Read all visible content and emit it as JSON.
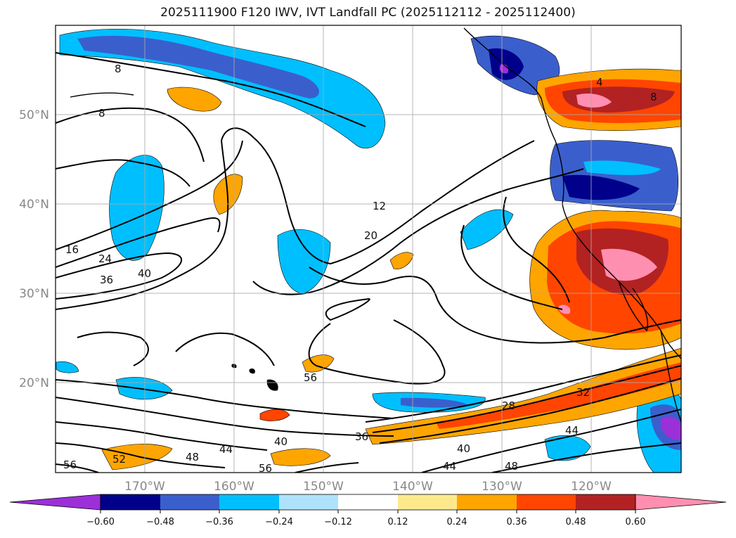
{
  "title": "2025111900 F120 IWV, IVT Landfall PC (2025112112 - 2025112400)",
  "axes": {
    "lat_labels": [
      "50°N",
      "40°N",
      "30°N",
      "20°N"
    ],
    "lon_labels": [
      "170°W",
      "160°W",
      "150°W",
      "140°W",
      "130°W",
      "120°W"
    ]
  },
  "colorbar": {
    "tick_labels": [
      "−0.60",
      "−0.48",
      "−0.36",
      "−0.24",
      "−0.12",
      "0.12",
      "0.24",
      "0.36",
      "0.48",
      "0.60"
    ],
    "colors": [
      "#9b30d8",
      "#00008b",
      "#3a5fcd",
      "#00bfff",
      "#aee2fb",
      "#ffffff",
      "#fde98c",
      "#ffa500",
      "#ff4500",
      "#b22222",
      "#ff8fb1"
    ]
  },
  "contour_labels": [
    "8",
    "8",
    "16",
    "24",
    "36",
    "40",
    "12",
    "20",
    "56",
    "52",
    "48",
    "44",
    "40",
    "56",
    "36",
    "28",
    "32",
    "44",
    "40",
    "44",
    "48",
    "4",
    "8"
  ]
}
